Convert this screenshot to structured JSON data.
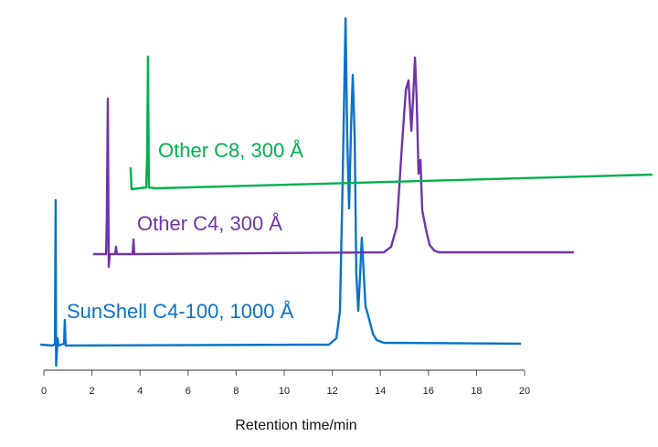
{
  "chart_data": {
    "type": "line",
    "title": "",
    "xlabel": "Retention time/min",
    "ylabel": "",
    "xlim": [
      0,
      20
    ],
    "xticks": [
      "0",
      "2",
      "4",
      "6",
      "8",
      "10",
      "12",
      "14",
      "16",
      "18",
      "20"
    ],
    "grid": false,
    "legend": "inline labels",
    "series": [
      {
        "name": "SunShell C4-100, 1000 Å",
        "color": "#0A72C8",
        "points": [
          [
            -0.15,
            0
          ],
          [
            0.38,
            -1
          ],
          [
            0.46,
            1
          ],
          [
            0.49,
            158
          ],
          [
            0.51,
            -23
          ],
          [
            0.57,
            7
          ],
          [
            0.61,
            -1
          ],
          [
            0.84,
            1
          ],
          [
            0.87,
            27
          ],
          [
            0.91,
            -1
          ],
          [
            11.86,
            0
          ],
          [
            12.17,
            7
          ],
          [
            12.32,
            37
          ],
          [
            12.43,
            177
          ],
          [
            12.55,
            357
          ],
          [
            12.62,
            227
          ],
          [
            12.7,
            149
          ],
          [
            12.78,
            237
          ],
          [
            12.85,
            295
          ],
          [
            12.93,
            227
          ],
          [
            13.0,
            77
          ],
          [
            13.08,
            37
          ],
          [
            13.16,
            77
          ],
          [
            13.23,
            117
          ],
          [
            13.31,
            77
          ],
          [
            13.38,
            42
          ],
          [
            13.46,
            35
          ],
          [
            13.54,
            27
          ],
          [
            13.69,
            12
          ],
          [
            13.84,
            5
          ],
          [
            14.14,
            2
          ],
          [
            19.85,
            1
          ]
        ]
      },
      {
        "name": "Other C4, 300 Å",
        "color": "#7034A8",
        "points": [
          [
            2.05,
            0
          ],
          [
            2.59,
            0
          ],
          [
            2.62,
            40
          ],
          [
            2.66,
            170
          ],
          [
            2.7,
            -14
          ],
          [
            2.74,
            0
          ],
          [
            2.97,
            0
          ],
          [
            3.0,
            8
          ],
          [
            3.04,
            0
          ],
          [
            3.69,
            0
          ],
          [
            3.73,
            16
          ],
          [
            3.76,
            0
          ],
          [
            14.14,
            2
          ],
          [
            14.45,
            8
          ],
          [
            14.68,
            30
          ],
          [
            14.9,
            120
          ],
          [
            15.06,
            180
          ],
          [
            15.17,
            190
          ],
          [
            15.29,
            135
          ],
          [
            15.36,
            170
          ],
          [
            15.44,
            215
          ],
          [
            15.51,
            170
          ],
          [
            15.59,
            88
          ],
          [
            15.67,
            103
          ],
          [
            15.74,
            48
          ],
          [
            15.89,
            28
          ],
          [
            16.05,
            10
          ],
          [
            16.24,
            4
          ],
          [
            16.43,
            2
          ],
          [
            22.05,
            2
          ]
        ]
      },
      {
        "name": "Other C8, 300 Å",
        "color": "#00B050",
        "points": [
          [
            3.61,
            24
          ],
          [
            3.65,
            0
          ],
          [
            4.26,
            2
          ],
          [
            4.3,
            40
          ],
          [
            4.33,
            145
          ],
          [
            4.37,
            2
          ],
          [
            4.64,
            1
          ],
          [
            25.32,
            16
          ]
        ]
      }
    ]
  }
}
